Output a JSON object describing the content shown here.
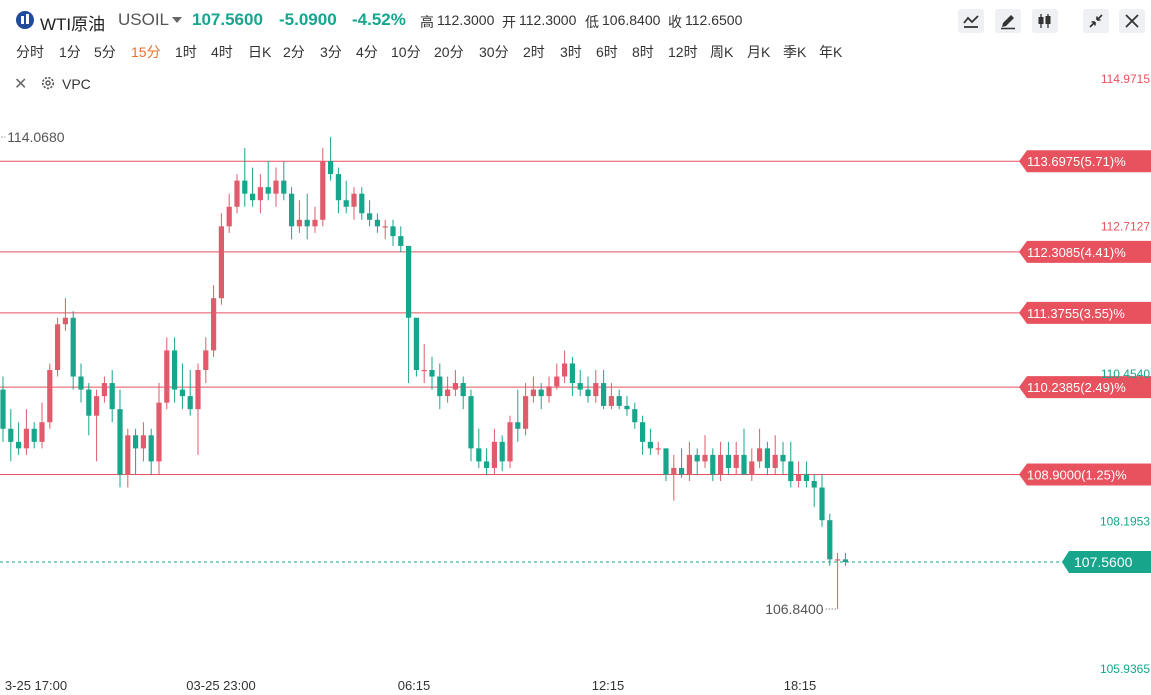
{
  "header": {
    "name": "WTI原油",
    "code": "USOIL",
    "price": "107.5600",
    "change": "-5.0900",
    "change_pct": "-4.52%",
    "high_label": "高",
    "high": "112.3000",
    "open_label": "开",
    "open": "112.3000",
    "low_label": "低",
    "low": "106.8400",
    "close_label": "收",
    "close": "112.6500",
    "toolbar": [
      "line-chart-icon",
      "pen-icon",
      "candles-icon",
      "collapse-icon",
      "close-icon"
    ]
  },
  "periods": [
    "分时",
    "1分",
    "5分",
    "15分",
    "1时",
    "4时",
    "日K",
    "2分",
    "3分",
    "4分",
    "10分",
    "20分",
    "30分",
    "2时",
    "3时",
    "6时",
    "8时",
    "12时",
    "周K",
    "月K",
    "季K",
    "年K"
  ],
  "active_period": "15分",
  "indicator": {
    "label": "VPC"
  },
  "colors": {
    "up": "#e05b6b",
    "down": "#17a58c",
    "level": "#e8525f",
    "accent": "#e8722b"
  },
  "chart_data": {
    "type": "candlestick",
    "x_ticks": [
      "3-25 17:00",
      "03-25 23:00",
      "06:15",
      "12:15",
      "18:15"
    ],
    "y_tick_labels": [
      {
        "value": 114.9715,
        "text": "114.9715",
        "color": "#e8525f"
      },
      {
        "value": 112.7127,
        "text": "112.7127",
        "color": "#e8525f"
      },
      {
        "value": 110.454,
        "text": "110.4540",
        "color": "#17a58c"
      },
      {
        "value": 108.1953,
        "text": "108.1953",
        "color": "#17a58c"
      },
      {
        "value": 105.9365,
        "text": "105.9365",
        "color": "#17a58c"
      }
    ],
    "ylim": [
      105.9365,
      114.9715
    ],
    "levels": [
      {
        "value": 113.6975,
        "label": "113.6975(5.71)%"
      },
      {
        "value": 112.3085,
        "label": "112.3085(4.41)%"
      },
      {
        "value": 111.3755,
        "label": "111.3755(3.55)%"
      },
      {
        "value": 110.2385,
        "label": "110.2385(2.49)%"
      },
      {
        "value": 108.9,
        "label": "108.9000(1.25)%"
      }
    ],
    "current": {
      "value": 107.56,
      "label": "107.5600"
    },
    "annotations": [
      {
        "value": 114.068,
        "label": "114.0680",
        "type": "high"
      },
      {
        "value": 106.84,
        "label": "106.8400",
        "type": "low"
      }
    ],
    "candles": [
      [
        110.2,
        109.6,
        110.4,
        109.4
      ],
      [
        109.6,
        109.4,
        109.9,
        109.1
      ],
      [
        109.4,
        109.3,
        109.7,
        109.2
      ],
      [
        109.3,
        109.6,
        109.9,
        109.2
      ],
      [
        109.6,
        109.4,
        109.7,
        109.3
      ],
      [
        109.4,
        109.7,
        110.0,
        109.3
      ],
      [
        109.7,
        110.5,
        110.6,
        109.6
      ],
      [
        110.5,
        111.2,
        111.3,
        110.4
      ],
      [
        111.2,
        111.3,
        111.6,
        111.1
      ],
      [
        111.3,
        110.4,
        111.4,
        110.2
      ],
      [
        110.4,
        110.2,
        110.6,
        110.0
      ],
      [
        110.2,
        109.8,
        110.3,
        109.5
      ],
      [
        109.8,
        110.1,
        110.2,
        109.1
      ],
      [
        110.1,
        110.3,
        110.4,
        110.0
      ],
      [
        110.3,
        109.9,
        110.5,
        109.7
      ],
      [
        109.9,
        108.9,
        110.2,
        108.7
      ],
      [
        108.9,
        109.5,
        109.6,
        108.7
      ],
      [
        109.5,
        109.3,
        109.6,
        108.9
      ],
      [
        109.3,
        109.5,
        109.7,
        109.1
      ],
      [
        109.5,
        109.1,
        109.6,
        108.9
      ],
      [
        109.1,
        110.0,
        110.3,
        108.9
      ],
      [
        110.0,
        110.8,
        111.0,
        109.9
      ],
      [
        110.8,
        110.2,
        111.0,
        110.0
      ],
      [
        110.2,
        110.1,
        110.6,
        109.9
      ],
      [
        110.1,
        109.9,
        110.5,
        109.8
      ],
      [
        109.9,
        110.5,
        110.6,
        109.2
      ],
      [
        110.5,
        110.8,
        111.0,
        110.3
      ],
      [
        110.8,
        111.6,
        111.8,
        110.7
      ],
      [
        111.6,
        112.7,
        112.9,
        111.5
      ],
      [
        112.7,
        113.0,
        113.2,
        112.6
      ],
      [
        113.0,
        113.4,
        113.5,
        112.9
      ],
      [
        113.4,
        113.2,
        113.9,
        113.0
      ],
      [
        113.2,
        113.1,
        113.6,
        113.0
      ],
      [
        113.1,
        113.3,
        113.5,
        112.9
      ],
      [
        113.3,
        113.2,
        113.7,
        113.1
      ],
      [
        113.2,
        113.4,
        113.6,
        113.0
      ],
      [
        113.4,
        113.2,
        113.7,
        113.1
      ],
      [
        113.2,
        112.7,
        113.3,
        112.5
      ],
      [
        112.7,
        112.8,
        113.1,
        112.6
      ],
      [
        112.8,
        112.7,
        113.2,
        112.5
      ],
      [
        112.7,
        112.8,
        113.0,
        112.6
      ],
      [
        112.8,
        113.7,
        113.9,
        112.7
      ],
      [
        113.7,
        113.5,
        114.07,
        113.4
      ],
      [
        113.5,
        113.1,
        113.6,
        112.9
      ],
      [
        113.1,
        113.0,
        113.4,
        112.9
      ],
      [
        113.0,
        113.2,
        113.3,
        112.8
      ],
      [
        113.2,
        112.9,
        113.3,
        112.8
      ],
      [
        112.9,
        112.8,
        113.1,
        112.7
      ],
      [
        112.8,
        112.7,
        112.9,
        112.6
      ],
      [
        112.7,
        112.7,
        112.8,
        112.5
      ],
      [
        112.7,
        112.55,
        112.8,
        112.4
      ],
      [
        112.55,
        112.4,
        112.7,
        112.3
      ],
      [
        112.4,
        111.3,
        112.4,
        110.3
      ],
      [
        111.3,
        110.5,
        111.3,
        110.4
      ],
      [
        110.5,
        110.5,
        110.9,
        110.3
      ],
      [
        110.5,
        110.4,
        110.7,
        110.2
      ],
      [
        110.4,
        110.1,
        110.6,
        109.9
      ],
      [
        110.1,
        110.2,
        110.4,
        110.0
      ],
      [
        110.2,
        110.3,
        110.5,
        110.1
      ],
      [
        110.3,
        110.1,
        110.4,
        109.9
      ],
      [
        110.1,
        109.3,
        110.2,
        109.1
      ],
      [
        109.3,
        109.1,
        109.6,
        109.0
      ],
      [
        109.1,
        109.0,
        109.3,
        108.9
      ],
      [
        109.0,
        109.4,
        109.6,
        108.9
      ],
      [
        109.4,
        109.1,
        109.5,
        108.95
      ],
      [
        109.1,
        109.7,
        109.8,
        109.0
      ],
      [
        109.7,
        109.6,
        110.2,
        109.4
      ],
      [
        109.6,
        110.1,
        110.3,
        109.5
      ],
      [
        110.1,
        110.2,
        110.4,
        110.0
      ],
      [
        110.2,
        110.1,
        110.3,
        109.9
      ],
      [
        110.1,
        110.25,
        110.4,
        110.0
      ],
      [
        110.25,
        110.4,
        110.6,
        110.2
      ],
      [
        110.4,
        110.6,
        110.8,
        110.3
      ],
      [
        110.6,
        110.3,
        110.7,
        110.1
      ],
      [
        110.3,
        110.2,
        110.5,
        110.1
      ],
      [
        110.2,
        110.1,
        110.4,
        110.0
      ],
      [
        110.1,
        110.3,
        110.5,
        110.0
      ],
      [
        110.3,
        109.95,
        110.5,
        109.9
      ],
      [
        109.95,
        110.1,
        110.3,
        109.9
      ],
      [
        110.1,
        109.95,
        110.2,
        109.9
      ],
      [
        109.95,
        109.9,
        110.1,
        109.8
      ],
      [
        109.9,
        109.7,
        110.0,
        109.6
      ],
      [
        109.7,
        109.4,
        109.8,
        109.2
      ],
      [
        109.4,
        109.3,
        109.6,
        109.2
      ],
      [
        109.3,
        109.3,
        109.4,
        109.2
      ],
      [
        109.3,
        108.9,
        109.3,
        108.8
      ],
      [
        108.9,
        109.0,
        109.2,
        108.5
      ],
      [
        109.0,
        108.9,
        109.3,
        108.85
      ],
      [
        108.9,
        109.2,
        109.4,
        108.8
      ],
      [
        109.2,
        109.1,
        109.3,
        108.9
      ],
      [
        109.1,
        109.2,
        109.5,
        109.0
      ],
      [
        109.2,
        108.9,
        109.3,
        108.8
      ],
      [
        108.9,
        109.2,
        109.4,
        108.8
      ],
      [
        109.2,
        109.0,
        109.4,
        108.9
      ],
      [
        109.0,
        109.2,
        109.4,
        108.9
      ],
      [
        109.2,
        108.9,
        109.6,
        108.9
      ],
      [
        108.9,
        109.1,
        109.3,
        108.8
      ],
      [
        109.1,
        109.3,
        109.6,
        109.0
      ],
      [
        109.3,
        109.0,
        109.4,
        108.9
      ],
      [
        109.0,
        109.2,
        109.5,
        108.9
      ],
      [
        109.2,
        109.1,
        109.4,
        108.9
      ],
      [
        109.1,
        108.8,
        109.4,
        108.7
      ],
      [
        108.8,
        108.9,
        109.1,
        108.7
      ],
      [
        108.9,
        108.8,
        109.1,
        108.7
      ],
      [
        108.8,
        108.7,
        108.9,
        108.4
      ],
      [
        108.7,
        108.2,
        108.9,
        108.1
      ],
      [
        108.2,
        107.6,
        108.3,
        107.5
      ],
      [
        107.6,
        107.6,
        107.7,
        106.84
      ],
      [
        107.6,
        107.56,
        107.7,
        107.5
      ]
    ]
  }
}
